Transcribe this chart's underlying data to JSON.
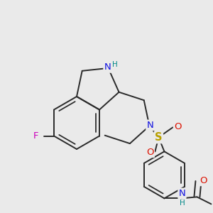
{
  "background_color": "#eaeaea",
  "bond_color": "#2a2a2a",
  "bond_width": 1.4,
  "colors": {
    "N": "#1010e0",
    "NH": "#008888",
    "S": "#b8a000",
    "O": "#dd1100",
    "F": "#cc00bb",
    "C": "#2a2a2a"
  }
}
